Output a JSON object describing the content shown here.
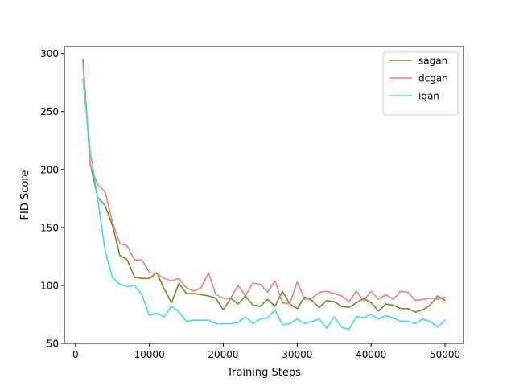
{
  "chart_data": {
    "type": "line",
    "xlabel": "Training Steps",
    "ylabel": "FID Score",
    "xlim": [
      -1500,
      52500
    ],
    "ylim": [
      50,
      306
    ],
    "xticks": [
      0,
      10000,
      20000,
      30000,
      40000,
      50000
    ],
    "yticks": [
      50,
      100,
      150,
      200,
      250,
      300
    ],
    "grid": false,
    "legend_position": "top-right",
    "x": [
      1000,
      2000,
      3000,
      4000,
      5000,
      6000,
      7000,
      8000,
      9000,
      10000,
      11000,
      12000,
      13000,
      14000,
      15000,
      16000,
      17000,
      18000,
      19000,
      20000,
      21000,
      22000,
      23000,
      24000,
      25000,
      26000,
      27000,
      28000,
      29000,
      30000,
      31000,
      32000,
      33000,
      34000,
      35000,
      36000,
      37000,
      38000,
      39000,
      40000,
      41000,
      42000,
      43000,
      44000,
      45000,
      46000,
      47000,
      48000,
      49000,
      50000
    ],
    "series": [
      {
        "name": "sagan",
        "color": "#6b8e23",
        "values": [
          295,
          205,
          176,
          169,
          152,
          126,
          122,
          107,
          106,
          106,
          111,
          97,
          85,
          102,
          93,
          93,
          92,
          91,
          89,
          79,
          89,
          84,
          91,
          83,
          82,
          88,
          82,
          95,
          84,
          80,
          90,
          87,
          81,
          87,
          86,
          82,
          81,
          85,
          89,
          85,
          78,
          84,
          83,
          80,
          80,
          77,
          79,
          83,
          91,
          87
        ]
      },
      {
        "name": "dcgan",
        "color": "#f08080",
        "values": [
          293,
          204,
          187,
          181,
          155,
          136,
          134,
          122,
          122,
          111,
          110,
          106,
          104,
          106,
          98,
          95,
          98,
          111,
          92,
          89,
          89,
          100,
          91,
          102,
          101,
          94,
          104,
          85,
          84,
          103,
          88,
          89,
          94,
          95,
          93,
          91,
          86,
          95,
          87,
          95,
          88,
          92,
          88,
          95,
          94,
          87,
          88,
          89,
          88,
          90
        ]
      },
      {
        "name": "igan",
        "color": "#40e0d0",
        "values": [
          278,
          216,
          175,
          130,
          107,
          101,
          99,
          100,
          92,
          74,
          76,
          73,
          82,
          77,
          69,
          70,
          70,
          70,
          67,
          67,
          67,
          68,
          73,
          67,
          71,
          72,
          79,
          66,
          67,
          71,
          67,
          69,
          71,
          63,
          73,
          64,
          62,
          73,
          72,
          75,
          71,
          74,
          72,
          69,
          69,
          67,
          71,
          69,
          64,
          70
        ]
      }
    ]
  }
}
